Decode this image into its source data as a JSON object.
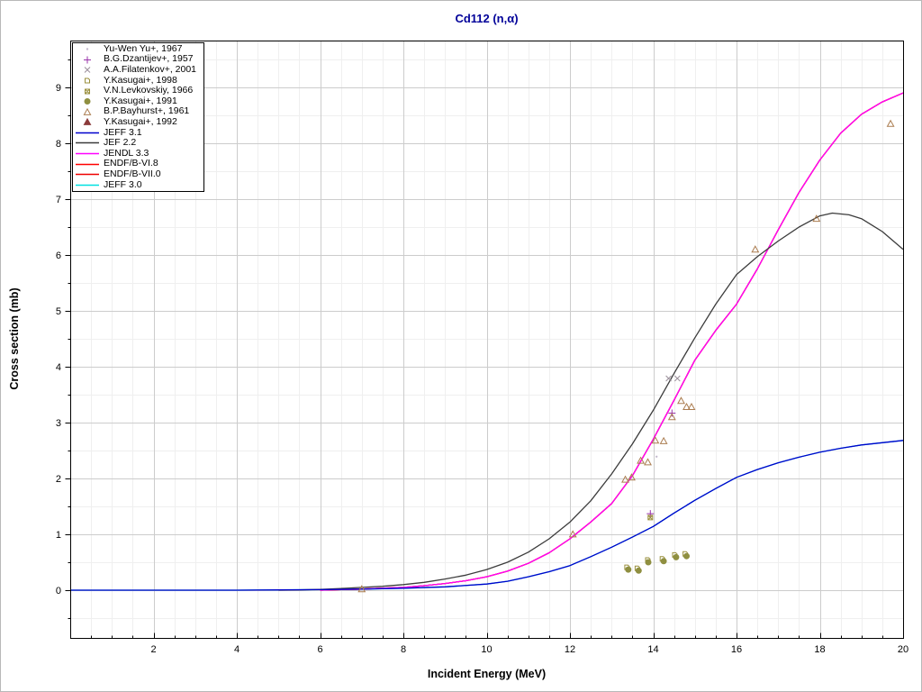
{
  "colors": {
    "title": "#000099",
    "axis": "#000000",
    "grid_major": "#cccccc",
    "grid_minor": "#efefef",
    "tick_label": "#000000"
  },
  "chart_data": {
    "type": "line",
    "title": "Cd112 (n,α)",
    "xlabel": "Incident Energy (MeV)",
    "ylabel": "Cross section (mb)",
    "xlim": [
      0,
      20
    ],
    "ylim": [
      -0.855,
      9.839
    ],
    "x_major_tick_step": 2,
    "x_minor_tick_step": 0.5,
    "y_major_tick_step": 1,
    "y_minor_tick_step": 0.5,
    "x_tick_labels": [
      "2",
      "4",
      "6",
      "8",
      "10",
      "12",
      "14",
      "16",
      "18",
      "20"
    ],
    "x_tick_values": [
      2,
      4,
      6,
      8,
      10,
      12,
      14,
      16,
      18,
      20
    ],
    "y_tick_labels": [
      "0",
      "1",
      "2",
      "3",
      "4",
      "5",
      "6",
      "7",
      "8",
      "9"
    ],
    "y_tick_values": [
      0,
      1,
      2,
      3,
      4,
      5,
      6,
      7,
      8,
      9
    ],
    "grid": "major+minor",
    "legend_position": "top-left",
    "curves": [
      {
        "name": "JEFF 3.1",
        "color": "#0000cc",
        "points": [
          [
            0,
            0
          ],
          [
            4,
            0
          ],
          [
            5,
            0.005
          ],
          [
            6,
            0.01
          ],
          [
            7,
            0.02
          ],
          [
            8,
            0.035
          ],
          [
            9,
            0.06
          ],
          [
            10,
            0.11
          ],
          [
            10.5,
            0.16
          ],
          [
            11,
            0.24
          ],
          [
            11.5,
            0.33
          ],
          [
            12,
            0.44
          ],
          [
            12.5,
            0.6
          ],
          [
            13,
            0.77
          ],
          [
            13.5,
            0.95
          ],
          [
            14,
            1.14
          ],
          [
            14.5,
            1.38
          ],
          [
            15,
            1.61
          ],
          [
            15.5,
            1.82
          ],
          [
            16,
            2.02
          ],
          [
            16.5,
            2.16
          ],
          [
            17,
            2.28
          ],
          [
            17.5,
            2.38
          ],
          [
            18,
            2.47
          ],
          [
            18.5,
            2.54
          ],
          [
            19,
            2.6
          ],
          [
            19.5,
            2.64
          ],
          [
            20,
            2.68
          ]
        ]
      },
      {
        "name": "JEF 2.2",
        "color": "#3c3c3c",
        "points": [
          [
            5,
            0
          ],
          [
            5.5,
            0.005
          ],
          [
            6,
            0.015
          ],
          [
            6.5,
            0.03
          ],
          [
            7,
            0.05
          ],
          [
            7.5,
            0.07
          ],
          [
            8,
            0.1
          ],
          [
            8.5,
            0.14
          ],
          [
            9,
            0.2
          ],
          [
            9.5,
            0.27
          ],
          [
            10,
            0.37
          ],
          [
            10.5,
            0.5
          ],
          [
            11,
            0.68
          ],
          [
            11.5,
            0.92
          ],
          [
            12,
            1.22
          ],
          [
            12.5,
            1.6
          ],
          [
            13,
            2.08
          ],
          [
            13.5,
            2.62
          ],
          [
            14,
            3.22
          ],
          [
            14.5,
            3.88
          ],
          [
            15,
            4.52
          ],
          [
            15.5,
            5.12
          ],
          [
            16,
            5.65
          ],
          [
            16.5,
            5.97
          ],
          [
            17,
            6.25
          ],
          [
            17.5,
            6.5
          ],
          [
            18,
            6.7
          ],
          [
            18.3,
            6.75
          ],
          [
            18.7,
            6.72
          ],
          [
            19,
            6.65
          ],
          [
            19.5,
            6.42
          ],
          [
            20,
            6.1
          ]
        ]
      },
      {
        "name": "JENDL 3.3",
        "color": "#ff00ff",
        "points": [
          [
            6,
            0
          ],
          [
            6.5,
            0.01
          ],
          [
            7,
            0.02
          ],
          [
            7.5,
            0.035
          ],
          [
            8,
            0.05
          ],
          [
            8.5,
            0.08
          ],
          [
            9,
            0.12
          ],
          [
            9.5,
            0.17
          ],
          [
            10,
            0.24
          ],
          [
            10.5,
            0.34
          ],
          [
            11,
            0.48
          ],
          [
            11.5,
            0.67
          ],
          [
            12,
            0.92
          ],
          [
            12.5,
            1.22
          ],
          [
            13,
            1.55
          ],
          [
            13.5,
            2.05
          ],
          [
            14,
            2.7
          ],
          [
            14.5,
            3.4
          ],
          [
            15,
            4.12
          ],
          [
            15.5,
            4.65
          ],
          [
            16,
            5.12
          ],
          [
            16.5,
            5.75
          ],
          [
            17,
            6.45
          ],
          [
            17.5,
            7.12
          ],
          [
            18,
            7.7
          ],
          [
            18.5,
            8.18
          ],
          [
            19,
            8.52
          ],
          [
            19.5,
            8.74
          ],
          [
            20,
            8.9
          ]
        ]
      },
      {
        "name": "ENDF/B-VI.8",
        "color": "#ff0000",
        "same_as": "JENDL 3.3",
        "hidden_behind": "JENDL 3.3"
      },
      {
        "name": "ENDF/B-VII.0",
        "color": "#ee0000",
        "same_as": "JENDL 3.3",
        "hidden_behind": "JENDL 3.3"
      },
      {
        "name": "JEFF 3.0",
        "color": "#00e0e0",
        "same_as": "JEFF 3.1",
        "hidden_behind": "JEFF 3.1"
      }
    ],
    "experiments": [
      {
        "name": "Yu-Wen Yu+, 1967",
        "marker": "dot",
        "color": "#c4bacd",
        "points": [
          [
            14.08,
            2.39
          ]
        ]
      },
      {
        "name": "B.G.Dzantijev+, 1957",
        "marker": "plus",
        "color": "#9933aa",
        "points": [
          [
            13.93,
            1.37
          ],
          [
            14.45,
            3.17
          ]
        ]
      },
      {
        "name": "A.A.Filatenkov+, 2001",
        "marker": "x",
        "color": "#9a8f9a",
        "points": [
          [
            14.37,
            3.79
          ],
          [
            14.58,
            3.79
          ]
        ]
      },
      {
        "name": "Y.Kasugai+, 1998",
        "marker": "square-open",
        "color": "#9a8f3c",
        "points": [
          [
            13.37,
            0.41
          ],
          [
            13.62,
            0.39
          ],
          [
            13.87,
            0.54
          ],
          [
            14.22,
            0.56
          ],
          [
            14.52,
            0.63
          ],
          [
            14.77,
            0.65
          ]
        ]
      },
      {
        "name": "V.N.Levkovskiy, 1966",
        "marker": "square-x",
        "color": "#9a8f3c",
        "points": [
          [
            13.93,
            1.3
          ]
        ]
      },
      {
        "name": "Y.Kasugai+, 1991",
        "marker": "circle-filled",
        "color": "#8f8f40",
        "points": [
          [
            13.4,
            0.37
          ],
          [
            13.65,
            0.35
          ],
          [
            13.88,
            0.5
          ],
          [
            14.25,
            0.52
          ],
          [
            14.55,
            0.59
          ],
          [
            14.8,
            0.61
          ]
        ]
      },
      {
        "name": "B.P.Bayhurst+, 1961",
        "marker": "triangle-open",
        "color": "#ab7d50",
        "points": [
          [
            7,
            0.02
          ],
          [
            12.07,
            1.0
          ],
          [
            13.33,
            1.98
          ],
          [
            13.48,
            2.02
          ],
          [
            13.7,
            2.32
          ],
          [
            13.87,
            2.29
          ],
          [
            14.05,
            2.68
          ],
          [
            14.25,
            2.67
          ],
          [
            14.45,
            3.1
          ],
          [
            14.67,
            3.39
          ],
          [
            14.8,
            3.28
          ],
          [
            14.92,
            3.28
          ],
          [
            16.45,
            6.1
          ],
          [
            17.92,
            6.65
          ],
          [
            19.7,
            8.35
          ]
        ]
      },
      {
        "name": "Y.Kasugai+, 1992",
        "marker": "triangle-filled",
        "color": "#8b3a3a",
        "points": []
      }
    ]
  }
}
